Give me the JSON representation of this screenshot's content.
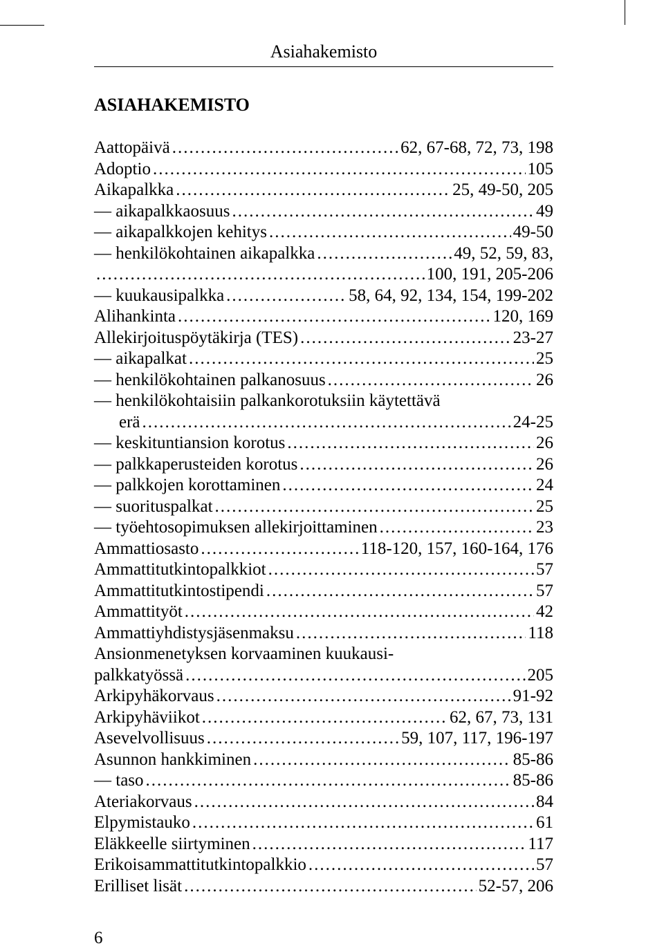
{
  "running_head": "Asiahakemisto",
  "title": "ASIAHAKEMISTO",
  "page_number": "6",
  "entries": [
    {
      "term": "Aattopäivä",
      "pages": "62, 67-68, 72, 73, 198",
      "sub": false
    },
    {
      "term": "Adoptio",
      "pages": "105",
      "sub": false
    },
    {
      "term": "Aikapalkka",
      "pages": "25, 49-50, 205",
      "sub": false
    },
    {
      "term": "aikapalkkaosuus",
      "pages": "49",
      "sub": true
    },
    {
      "term": "aikapalkkojen kehitys",
      "pages": "49-50",
      "sub": true
    },
    {
      "term": "henkilökohtainen aikapalkka",
      "pages": "49, 52, 59, 83,",
      "sub": true
    },
    {
      "term": "",
      "pages": "100, 191, 205-206",
      "sub": false,
      "continuation": true
    },
    {
      "term": "kuukausipalkka",
      "pages": "58, 64, 92, 134, 154, 199-202",
      "sub": true
    },
    {
      "term": "Alihankinta",
      "pages": "120, 169",
      "sub": false
    },
    {
      "term": "Allekirjoituspöytäkirja (TES)",
      "pages": "23-27",
      "sub": false
    },
    {
      "term": "aikapalkat",
      "pages": "25",
      "sub": true
    },
    {
      "term": "henkilökohtainen palkanosuus",
      "pages": "26",
      "sub": true
    },
    {
      "term": "henkilökohtaisiin palkankorotuksiin käytettävä",
      "pages": "",
      "sub": true,
      "wrap": true
    },
    {
      "term": "erä",
      "pages": "24-25",
      "sub": false,
      "indent": true
    },
    {
      "term": "keskituntiansion korotus",
      "pages": "26",
      "sub": true
    },
    {
      "term": "palkkaperusteiden korotus",
      "pages": "26",
      "sub": true
    },
    {
      "term": "palkkojen korottaminen",
      "pages": "24",
      "sub": true
    },
    {
      "term": "suorituspalkat",
      "pages": "25",
      "sub": true
    },
    {
      "term": "työehtosopimuksen allekirjoittaminen",
      "pages": "23",
      "sub": true
    },
    {
      "term": "Ammattiosasto",
      "pages": "118-120, 157, 160-164, 176",
      "sub": false
    },
    {
      "term": "Ammattitutkintopalkkiot",
      "pages": "57",
      "sub": false
    },
    {
      "term": "Ammattitutkintostipendi",
      "pages": "57",
      "sub": false
    },
    {
      "term": "Ammattityöt",
      "pages": "42",
      "sub": false
    },
    {
      "term": "Ammattiyhdistysjäsenmaksu",
      "pages": "118",
      "sub": false
    },
    {
      "term": "Ansionmenetyksen korvaaminen kuukausi-",
      "pages": "",
      "sub": false,
      "wrap": true
    },
    {
      "term": "palkkatyössä",
      "pages": "205",
      "sub": false
    },
    {
      "term": "Arkipyhäkorvaus",
      "pages": "91-92",
      "sub": false
    },
    {
      "term": "Arkipyhäviikot",
      "pages": "62, 67, 73, 131",
      "sub": false
    },
    {
      "term": "Asevelvollisuus",
      "pages": "59, 107, 117, 196-197",
      "sub": false
    },
    {
      "term": "Asunnon hankkiminen",
      "pages": "85-86",
      "sub": false
    },
    {
      "term": "taso",
      "pages": "85-86",
      "sub": true
    },
    {
      "term": "Ateriakorvaus",
      "pages": "84",
      "sub": false
    },
    {
      "term": "Elpymistauko",
      "pages": "61",
      "sub": false
    },
    {
      "term": "Eläkkeelle siirtyminen",
      "pages": "117",
      "sub": false
    },
    {
      "term": "Erikoisammattitutkintopalkkio",
      "pages": "57",
      "sub": false
    },
    {
      "term": "Erilliset lisät",
      "pages": "52-57, 206",
      "sub": false
    }
  ],
  "colors": {
    "text": "#000000",
    "background": "#ffffff"
  },
  "typography": {
    "body_fontsize_pt": 19,
    "title_fontsize_pt": 20,
    "font_family": "Georgia, Times New Roman, serif"
  }
}
